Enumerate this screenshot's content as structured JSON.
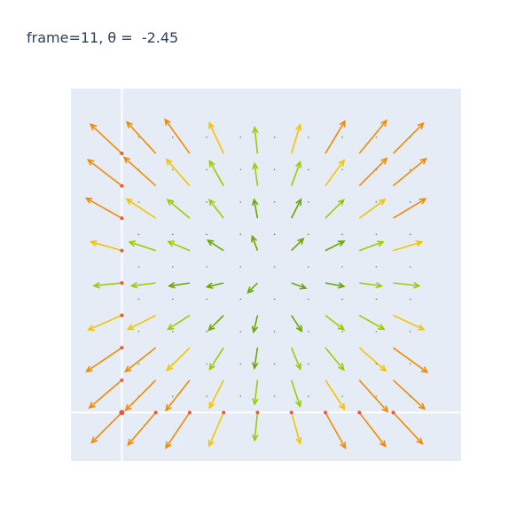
{
  "chart_data": {
    "type": "quiver",
    "title": "frame=11, θ =  -2.45",
    "xlabel": "",
    "ylabel": "",
    "xlim": [
      -0.3,
      2.0
    ],
    "ylim": [
      -0.3,
      2.0
    ],
    "grid": true,
    "zero_lines": true,
    "legend": "none",
    "field": {
      "grid_x_range": [
        0,
        1.7
      ],
      "grid_y_range": [
        0,
        1.7
      ],
      "grid_count": 18,
      "edge_markers": {
        "color": "#ef553b",
        "symbol": "circle"
      }
    },
    "colors": {
      "background": "#e5ecf6",
      "gridline": "#ffffff",
      "large_arrow": "#f08c00",
      "medium_arrow": "#f5c400",
      "small_arrow": "#9acd00",
      "tiny_arrow": "#6aa800"
    }
  }
}
